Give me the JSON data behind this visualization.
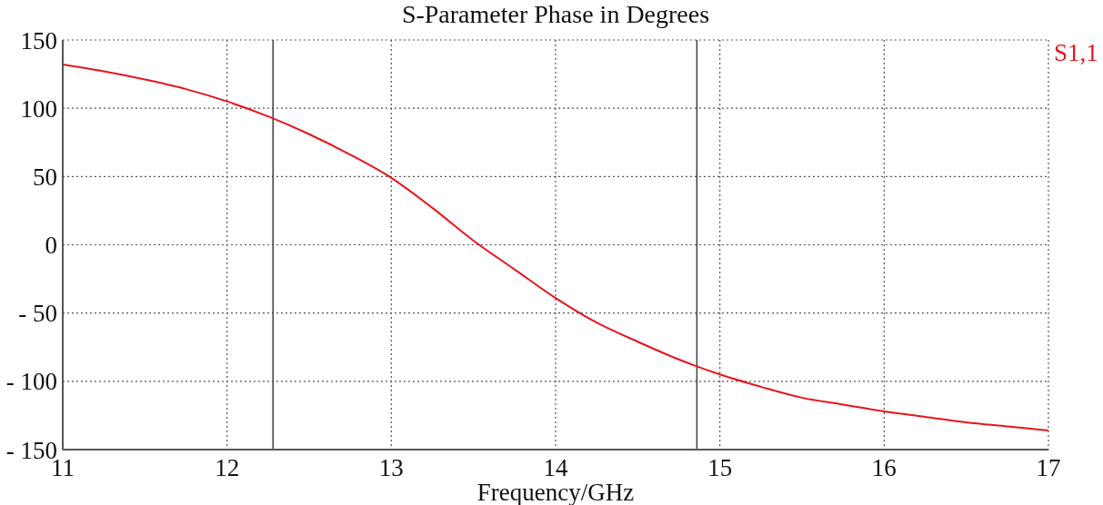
{
  "chart_data": {
    "type": "line",
    "title": "S-Parameter Phase in Degrees",
    "xlabel": "Frequency/GHz",
    "x": [
      11,
      11.25,
      11.5,
      11.75,
      12,
      12.25,
      12.5,
      12.75,
      13,
      13.25,
      13.5,
      13.75,
      14,
      14.25,
      14.5,
      14.75,
      15,
      15.25,
      15.5,
      15.75,
      16,
      16.25,
      16.5,
      16.75,
      17
    ],
    "series": [
      {
        "name": "S1,1",
        "color": "#e8141c",
        "values": [
          132,
          127,
          121,
          114,
          105,
          94,
          81,
          66,
          49,
          27,
          3,
          -18,
          -39,
          -57,
          -71,
          -84,
          -95,
          -104,
          -112,
          -117,
          -122,
          -126,
          -130,
          -133,
          -136
        ]
      }
    ],
    "xlim": [
      11,
      17
    ],
    "xticks": [
      11,
      12,
      13,
      14,
      15,
      16,
      17
    ],
    "ylim": [
      -150,
      150
    ],
    "yticks": [
      {
        "value": -150,
        "label": "- 150"
      },
      {
        "value": -100,
        "label": "- 100"
      },
      {
        "value": -50,
        "label": "- 50"
      },
      0,
      50,
      100,
      150
    ],
    "grid": true,
    "legend": "top right",
    "ref_lines": [
      {
        "axis": "x",
        "value": 12.28,
        "color": "#404040"
      },
      {
        "axis": "x",
        "value": 14.86,
        "color": "#404040"
      }
    ]
  }
}
